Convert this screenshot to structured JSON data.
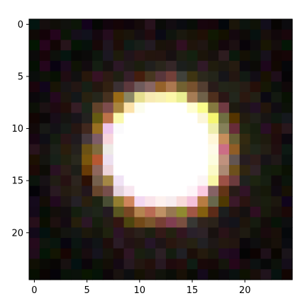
{
  "image": {
    "description_colors": {
      "background": "#ffffff",
      "frame": "#000000",
      "core": "#ffffff",
      "rim_yellow": "#ffff99",
      "rim_pink": "#ff99ee",
      "rim_orange": "#f4a06a",
      "halo_brown": "#6b4a2a",
      "dark_field": "#0e0c0a"
    },
    "grid_size": 25,
    "x_ticks": [
      "0",
      "5",
      "10",
      "15",
      "20"
    ],
    "x_tick_values": [
      0,
      5,
      10,
      15,
      20
    ],
    "y_ticks": [
      "0",
      "5",
      "10",
      "15",
      "20"
    ],
    "y_tick_values": [
      0,
      5,
      10,
      15,
      20
    ]
  }
}
